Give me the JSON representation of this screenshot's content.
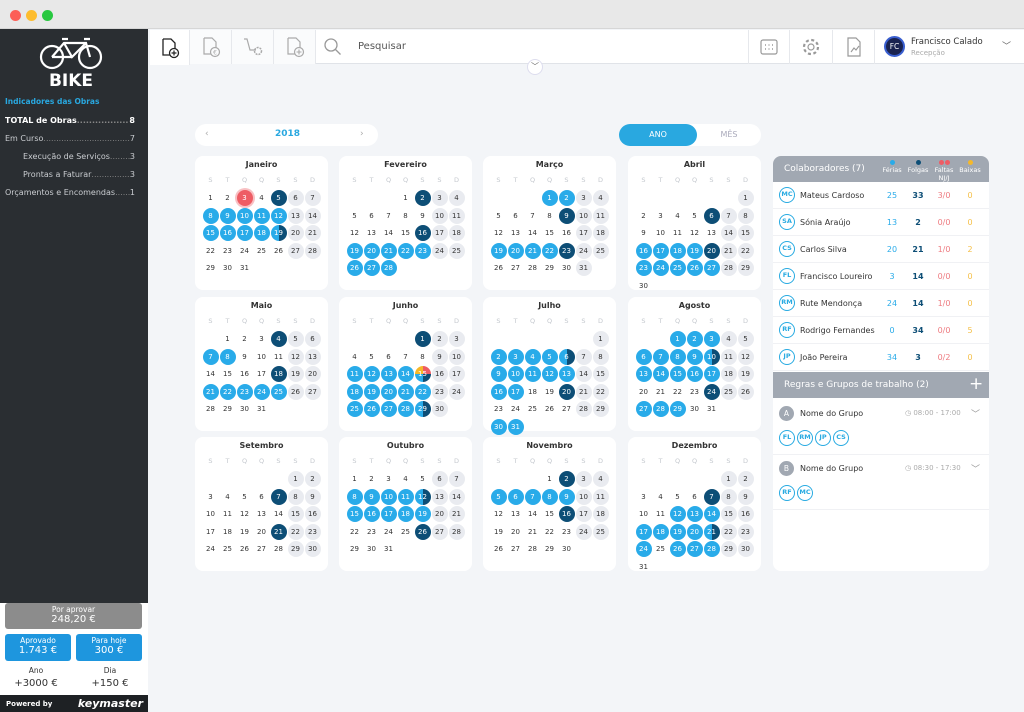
{
  "colors": {
    "accent": "#29abe9",
    "folga": "#0d4e76",
    "falta": "#ee5c64",
    "baixa": "#f5b829",
    "sidebar": "#2a2e32"
  },
  "sidebar": {
    "logo_text": "BIKE",
    "section_title": "Indicadores das Obras",
    "items": [
      {
        "label": "TOTAL de Obras",
        "value": "8",
        "bold": true,
        "indent": 0
      },
      {
        "label": "Em Curso",
        "value": "7",
        "indent": 0
      },
      {
        "label": "Execução de Serviços",
        "value": "3",
        "indent": 1
      },
      {
        "label": "Prontas a Faturar",
        "value": "3",
        "indent": 1
      },
      {
        "label": "Orçamentos e Encomendas",
        "value": "1",
        "indent": 0
      }
    ],
    "por_aprovar": {
      "label": "Por aprovar",
      "value": "248,20 €"
    },
    "aprovado": {
      "label": "Aprovado",
      "value": "1.743 €"
    },
    "para_hoje": {
      "label": "Para hoje",
      "value": "300 €"
    },
    "ano": {
      "label": "Ano",
      "value": "+3000 €"
    },
    "dia": {
      "label": "Dia",
      "value": "+150 €"
    },
    "powered_by": "Powered by",
    "brand": "keymaster"
  },
  "toolbar": {
    "icons": [
      "new-document-icon",
      "invoice-euro-icon",
      "cart-settings-icon",
      "add-document-icon"
    ],
    "search_placeholder": "Pesquisar",
    "right_icons": [
      "calendar-icon",
      "gear-icon",
      "chart-document-icon"
    ],
    "user": {
      "initials": "FC",
      "name": "Francisco Calado",
      "role": "Recepção"
    }
  },
  "calendar": {
    "year": "2018",
    "view_toggle": {
      "active": "ANO",
      "inactive": "MÊS"
    },
    "weekdays": [
      "S",
      "T",
      "Q",
      "Q",
      "S",
      "S",
      "D"
    ],
    "months": [
      {
        "name": "Janeiro",
        "states": {
          "3": "x",
          "5": "f",
          "8": "v",
          "9": "v",
          "10": "v",
          "11": "v",
          "12": "v",
          "15": "v",
          "16": "v",
          "17": "v",
          "18": "v",
          "19": "h"
        }
      },
      {
        "name": "Fevereiro",
        "states": {
          "2": "f",
          "16": "f",
          "19": "v",
          "20": "v",
          "21": "v",
          "22": "v",
          "23": "v",
          "26": "v",
          "27": "v",
          "28": "v"
        }
      },
      {
        "name": "Março",
        "states": {
          "1": "v",
          "2": "v",
          "9": "f",
          "19": "v",
          "20": "v",
          "21": "v",
          "22": "v",
          "23": "f"
        }
      },
      {
        "name": "Abril",
        "states": {
          "6": "f",
          "16": "v",
          "17": "v",
          "18": "v",
          "19": "v",
          "20": "f",
          "23": "v",
          "24": "v",
          "25": "v",
          "26": "v",
          "27": "v"
        }
      },
      {
        "name": "Maio",
        "states": {
          "4": "f",
          "7": "v",
          "8": "v",
          "18": "f",
          "21": "v",
          "22": "v",
          "23": "v",
          "24": "v",
          "25": "v"
        }
      },
      {
        "name": "Junho",
        "states": {
          "1": "f",
          "11": "v",
          "12": "v",
          "13": "v",
          "14": "v",
          "15": "m",
          "18": "v",
          "19": "v",
          "20": "v",
          "21": "v",
          "22": "v",
          "25": "v",
          "26": "v",
          "27": "v",
          "28": "v",
          "29": "h"
        }
      },
      {
        "name": "Julho",
        "states": {
          "2": "v",
          "3": "v",
          "4": "v",
          "5": "v",
          "6": "h",
          "9": "v",
          "10": "v",
          "11": "v",
          "12": "v",
          "13": "v",
          "16": "v",
          "17": "v",
          "20": "f",
          "30": "v",
          "31": "v"
        }
      },
      {
        "name": "Agosto",
        "states": {
          "1": "v",
          "2": "v",
          "3": "v",
          "6": "v",
          "7": "v",
          "8": "v",
          "9": "v",
          "10": "h",
          "13": "v",
          "14": "v",
          "15": "v",
          "16": "v",
          "17": "v",
          "24": "f",
          "27": "v",
          "28": "v",
          "29": "v"
        }
      },
      {
        "name": "Setembro",
        "states": {
          "7": "f",
          "21": "f"
        }
      },
      {
        "name": "Outubro",
        "states": {
          "8": "v",
          "9": "v",
          "10": "v",
          "11": "v",
          "12": "h",
          "15": "v",
          "16": "v",
          "17": "v",
          "18": "v",
          "19": "v",
          "26": "f"
        }
      },
      {
        "name": "Novembro",
        "states": {
          "2": "f",
          "5": "v",
          "6": "v",
          "7": "v",
          "8": "v",
          "9": "v",
          "16": "f"
        }
      },
      {
        "name": "Dezembro",
        "states": {
          "7": "f",
          "12": "v",
          "13": "v",
          "14": "v",
          "17": "v",
          "18": "v",
          "19": "v",
          "20": "v",
          "21": "h",
          "24": "v",
          "26": "v",
          "27": "v",
          "28": "v"
        }
      }
    ]
  },
  "collaborators": {
    "title": "Colaboradores (7)",
    "columns": [
      {
        "label": "Férias",
        "color": "#29abe9"
      },
      {
        "label": "Folgas",
        "color": "#0d4e76"
      },
      {
        "label": "Faltas NJ/J",
        "color": "#ee5c64"
      },
      {
        "label": "Baixas",
        "color": "#f5b829"
      }
    ],
    "rows": [
      {
        "initials": "MC",
        "name": "Mateus Cardoso",
        "ferias": "25",
        "folgas": "33",
        "faltas": "3/0",
        "baixas": "0"
      },
      {
        "initials": "SA",
        "name": "Sónia Araújo",
        "ferias": "13",
        "folgas": "2",
        "faltas": "0/0",
        "baixas": "0"
      },
      {
        "initials": "CS",
        "name": "Carlos Silva",
        "ferias": "20",
        "folgas": "21",
        "faltas": "1/0",
        "baixas": "2"
      },
      {
        "initials": "FL",
        "name": "Francisco Loureiro",
        "ferias": "3",
        "folgas": "14",
        "faltas": "0/0",
        "baixas": "0"
      },
      {
        "initials": "RM",
        "name": "Rute Mendonça",
        "ferias": "24",
        "folgas": "14",
        "faltas": "1/0",
        "baixas": "0"
      },
      {
        "initials": "RF",
        "name": "Rodrigo Fernandes",
        "ferias": "0",
        "folgas": "34",
        "faltas": "0/0",
        "baixas": "5"
      },
      {
        "initials": "JP",
        "name": "João Pereira",
        "ferias": "34",
        "folgas": "3",
        "faltas": "0/2",
        "baixas": "0"
      }
    ]
  },
  "groups": {
    "title": "Regras e Grupos de trabalho (2)",
    "items": [
      {
        "letter": "A",
        "name": "Nome do Grupo",
        "hours": "08:00 - 17:00",
        "members": [
          "FL",
          "RM",
          "JP",
          "CS"
        ]
      },
      {
        "letter": "B",
        "name": "Nome do Grupo",
        "hours": "08:30 - 17:30",
        "members": [
          "RF",
          "MC"
        ]
      }
    ]
  }
}
